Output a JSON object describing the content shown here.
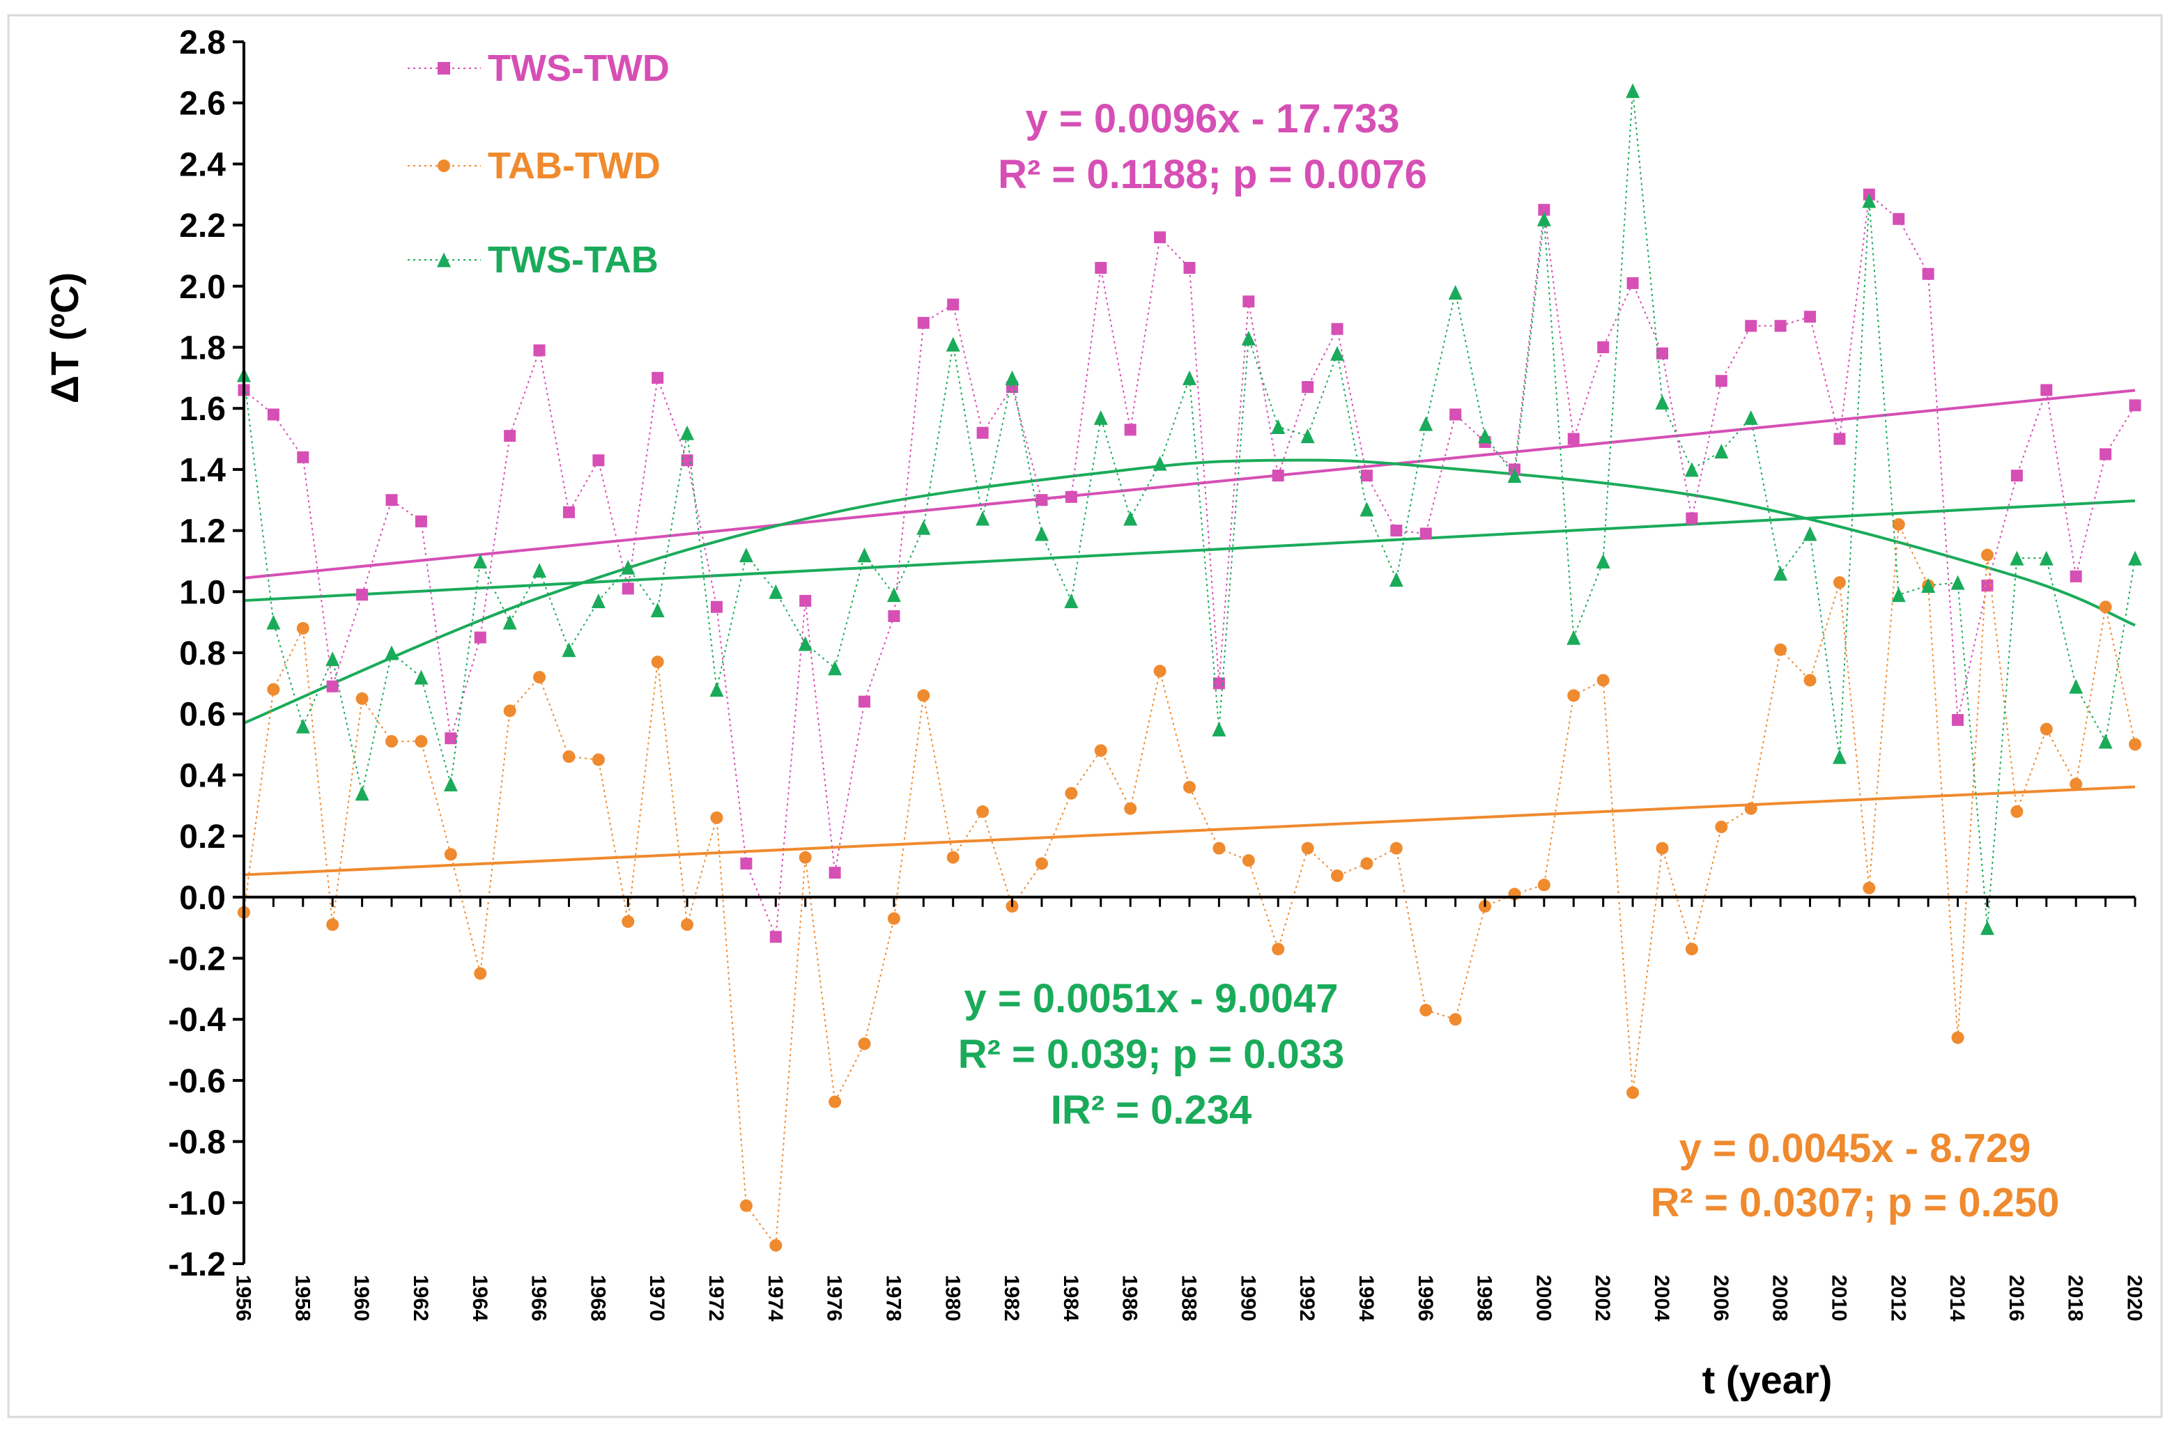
{
  "chart_data": {
    "type": "scatter",
    "xlabel": "t (year)",
    "ylabel": "ΔT (ºC)",
    "xlim": [
      1956,
      2020
    ],
    "ylim": [
      -1.2,
      2.8
    ],
    "yticks": [
      "2.8",
      "2.6",
      "2.4",
      "2.2",
      "2.0",
      "1.8",
      "1.6",
      "1.4",
      "1.2",
      "1.0",
      "0.8",
      "0.6",
      "0.4",
      "0.2",
      "0.0",
      "-0.2",
      "-0.4",
      "-0.6",
      "-0.8",
      "-1.0",
      "-1.2"
    ],
    "x": [
      1956,
      1957,
      1958,
      1959,
      1960,
      1961,
      1962,
      1963,
      1964,
      1965,
      1966,
      1967,
      1968,
      1969,
      1970,
      1971,
      1972,
      1973,
      1974,
      1975,
      1976,
      1977,
      1978,
      1979,
      1980,
      1981,
      1982,
      1983,
      1984,
      1985,
      1986,
      1987,
      1988,
      1989,
      1990,
      1991,
      1992,
      1993,
      1994,
      1995,
      1996,
      1997,
      1998,
      1999,
      2000,
      2001,
      2002,
      2003,
      2004,
      2005,
      2006,
      2007,
      2008,
      2009,
      2010,
      2011,
      2012,
      2013,
      2014,
      2015,
      2016,
      2017,
      2018,
      2019,
      2020
    ],
    "series": [
      {
        "name": "TWS-TWD",
        "color": "#d64fb5",
        "marker": "square",
        "values": [
          1.66,
          1.58,
          1.44,
          0.69,
          0.99,
          1.3,
          1.23,
          0.52,
          0.85,
          1.51,
          1.79,
          1.26,
          1.43,
          1.01,
          1.7,
          1.43,
          0.95,
          0.11,
          -0.13,
          0.97,
          0.08,
          0.64,
          0.92,
          1.88,
          1.94,
          1.52,
          1.67,
          1.3,
          1.31,
          2.06,
          1.53,
          2.16,
          2.06,
          0.7,
          1.95,
          1.38,
          1.67,
          1.86,
          1.38,
          1.2,
          1.19,
          1.58,
          1.49,
          1.4,
          2.25,
          1.5,
          1.8,
          2.01,
          1.78,
          1.24,
          1.69,
          1.87,
          1.87,
          1.9,
          1.5,
          2.3,
          2.22,
          2.04,
          0.58,
          1.02,
          1.38,
          1.66,
          1.05,
          1.45,
          1.61
        ]
      },
      {
        "name": "TAB-TWD",
        "color": "#ef8a2e",
        "marker": "circle",
        "values": [
          -0.05,
          0.68,
          0.88,
          -0.09,
          0.65,
          0.51,
          0.51,
          0.14,
          -0.25,
          0.61,
          0.72,
          0.46,
          0.45,
          -0.08,
          0.77,
          -0.09,
          0.26,
          -1.01,
          -1.14,
          0.13,
          -0.67,
          -0.48,
          -0.07,
          0.66,
          0.13,
          0.28,
          -0.03,
          0.11,
          0.34,
          0.48,
          0.29,
          0.74,
          0.36,
          0.16,
          0.12,
          -0.17,
          0.16,
          0.07,
          0.11,
          0.16,
          -0.37,
          -0.4,
          -0.03,
          0.01,
          0.04,
          0.66,
          0.71,
          -0.64,
          0.16,
          -0.17,
          0.23,
          0.29,
          0.81,
          0.71,
          1.03,
          0.03,
          1.22,
          1.02,
          -0.46,
          1.12,
          0.28,
          0.55,
          0.37,
          0.95,
          0.5
        ]
      },
      {
        "name": "TWS-TAB",
        "color": "#1aab5a",
        "marker": "triangle",
        "values": [
          1.71,
          0.9,
          0.56,
          0.78,
          0.34,
          0.8,
          0.72,
          0.37,
          1.1,
          0.9,
          1.07,
          0.81,
          0.97,
          1.08,
          0.94,
          1.52,
          0.68,
          1.12,
          1.0,
          0.83,
          0.75,
          1.12,
          0.99,
          1.21,
          1.81,
          1.24,
          1.7,
          1.19,
          0.97,
          1.57,
          1.24,
          1.42,
          1.7,
          0.55,
          1.83,
          1.54,
          1.51,
          1.78,
          1.27,
          1.04,
          1.55,
          1.98,
          1.51,
          1.38,
          2.22,
          0.85,
          1.1,
          2.64,
          1.62,
          1.4,
          1.46,
          1.57,
          1.06,
          1.19,
          0.46,
          2.28,
          0.99,
          1.02,
          1.03,
          -0.1,
          1.11,
          1.11,
          0.69,
          0.51,
          1.11
        ]
      }
    ],
    "trendlines": [
      {
        "series": "TWS-TWD",
        "kind": "linear",
        "slope": 0.0096,
        "intercept": -17.733
      },
      {
        "series": "TAB-TWD",
        "kind": "linear",
        "slope": 0.0045,
        "intercept": -8.729
      },
      {
        "series": "TWS-TAB",
        "kind": "linear",
        "slope": 0.0051,
        "intercept": -9.0047
      },
      {
        "series": "TWS-TAB",
        "kind": "polynomial",
        "x": [
          1956,
          1966,
          1976,
          1986,
          1991,
          1996,
          2006,
          2016,
          2020
        ],
        "y": [
          0.57,
          0.98,
          1.26,
          1.4,
          1.43,
          1.41,
          1.3,
          1.05,
          0.89
        ]
      }
    ],
    "legend_position": "top-left",
    "grid": false,
    "annotations": [
      {
        "id": "eq-tws-twd",
        "color": "#d64fb5",
        "lines": [
          "y = 0.0096x - 17.733",
          "R² = 0.1188; p = 0.0076"
        ]
      },
      {
        "id": "eq-tws-tab",
        "color": "#1aab5a",
        "lines": [
          "y = 0.0051x - 9.0047",
          "R² = 0.039; p = 0.033",
          "IR² = 0.234"
        ]
      },
      {
        "id": "eq-tab-twd",
        "color": "#ef8a2e",
        "lines": [
          "y = 0.0045x - 8.729",
          "R² = 0.0307; p = 0.250"
        ]
      }
    ]
  }
}
